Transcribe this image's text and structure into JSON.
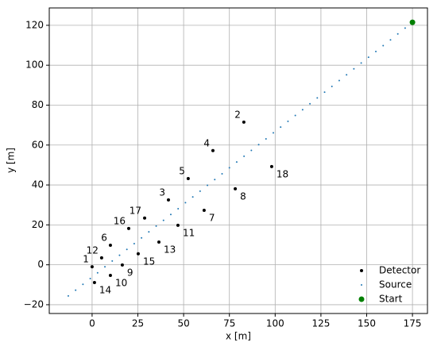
{
  "chart_data": {
    "type": "scatter",
    "xlabel": "x [m]",
    "ylabel": "y [m]",
    "xlim": [
      -23.4,
      183.2
    ],
    "ylim": [
      -24.4,
      128.7
    ],
    "xticks": [
      0,
      25,
      50,
      75,
      100,
      125,
      150,
      175
    ],
    "yticks": [
      {
        "value": -20,
        "label": "−20"
      },
      0,
      20,
      40,
      60,
      80,
      100,
      120
    ],
    "grid": true,
    "legend": "lower right",
    "series": [
      {
        "name": "Detector",
        "color": "#000000",
        "x": [
          0,
          82.9,
          41.7,
          66,
          52.5,
          10,
          61.2,
          78.2,
          16.5,
          10,
          46.9,
          5.2,
          36.5,
          1.3,
          25.2,
          20,
          28.7,
          98.1
        ],
        "y": [
          -1,
          71.5,
          32.5,
          57.2,
          43.2,
          9.8,
          27.3,
          38.1,
          -0.1,
          -5.3,
          19.8,
          3.5,
          11.4,
          -8.9,
          5.5,
          18.2,
          23.4,
          49.2
        ],
        "labels": [
          "1",
          "2",
          "3",
          "4",
          "5",
          "6",
          "7",
          "8",
          "9",
          "10",
          "11",
          "12",
          "13",
          "14",
          "15",
          "16",
          "17",
          "18"
        ]
      },
      {
        "name": "Source",
        "color": "#1f77b4",
        "x": [
          -13,
          -9,
          -5,
          -1,
          3,
          7,
          11,
          15,
          19,
          23,
          27,
          31,
          35,
          39,
          43,
          47,
          51,
          55,
          59,
          63,
          67,
          71,
          75,
          79,
          83,
          87,
          91,
          95,
          99,
          103,
          107,
          111,
          115,
          119,
          123,
          127,
          131,
          135,
          139,
          143,
          147,
          151,
          155,
          159,
          163,
          167,
          171,
          175
        ],
        "y": [
          -15.6,
          -12.7,
          -9.8,
          -6.9,
          -4,
          -1,
          1.9,
          4.8,
          7.7,
          10.6,
          13.5,
          16.5,
          19.4,
          22.3,
          25.2,
          28.1,
          31.1,
          34,
          36.9,
          39.8,
          42.7,
          45.6,
          48.6,
          51.5,
          54.4,
          57.3,
          60.2,
          63.1,
          66.1,
          69,
          71.9,
          74.8,
          77.7,
          80.7,
          83.6,
          86.5,
          89.4,
          92.3,
          95.2,
          98.2,
          101.1,
          104,
          106.9,
          109.8,
          112.7,
          115.7,
          118.6,
          121.5
        ]
      },
      {
        "name": "Start",
        "color": "#008000",
        "x": [
          175
        ],
        "y": [
          121.5
        ]
      }
    ]
  }
}
